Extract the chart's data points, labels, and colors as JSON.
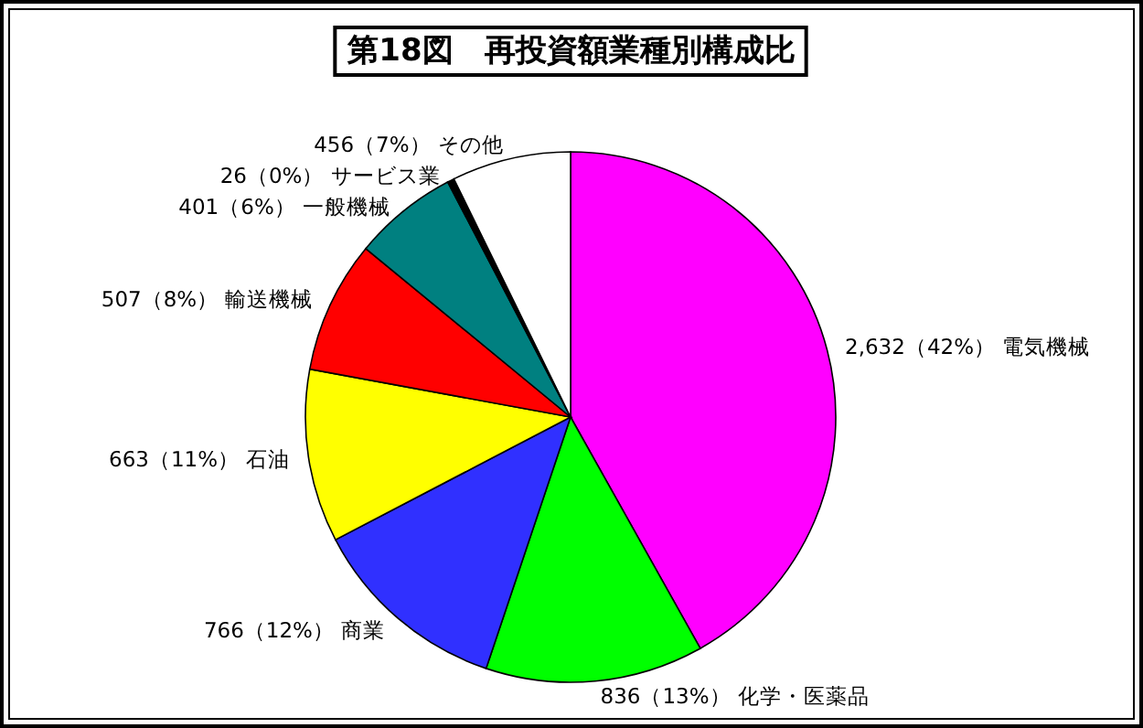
{
  "chart_data": {
    "type": "pie",
    "title": "第18図　再投資額業種別構成比",
    "categories": [
      "電気機械",
      "化学・医薬品",
      "商業",
      "石油",
      "輸送機械",
      "一般機械",
      "サービス業",
      "その他"
    ],
    "values": [
      2632,
      836,
      766,
      663,
      507,
      401,
      26,
      456
    ],
    "value_labels": [
      "2,632（42%）",
      "836（13%）",
      "766（12%）",
      "663（11%）",
      "507（8%）",
      "401（6%）",
      "26（0%）",
      "456（7%）"
    ],
    "colors": [
      "#ff00ff",
      "#00ff00",
      "#3030ff",
      "#ffff00",
      "#ff0000",
      "#008080",
      "#000000",
      "#ffffff"
    ]
  }
}
